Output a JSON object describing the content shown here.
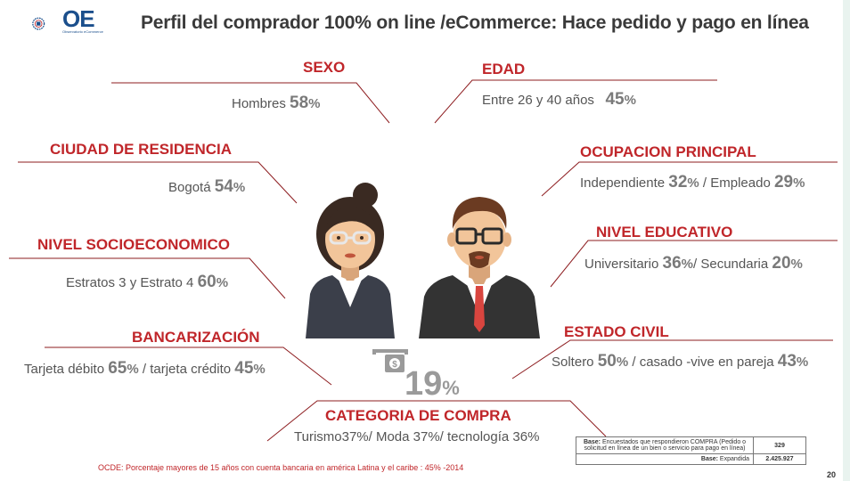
{
  "header": {
    "logo_text": "OE",
    "logo_subtitle": "Observatorio eCommerce",
    "title": "Perfil del comprador 100% on line /eCommerce: Hace pedido y pago en línea"
  },
  "sections": {
    "sexo": {
      "title": "SEXO",
      "label": "Hombres ",
      "value": "58",
      "unit": "%"
    },
    "edad": {
      "title": "EDAD",
      "label": "Entre 26 y 40 años ",
      "value": "45",
      "unit": "%"
    },
    "ciudad": {
      "title": "CIUDAD DE RESIDENCIA",
      "label": "Bogotá ",
      "value": "54",
      "unit": "%"
    },
    "ocupacion": {
      "title": "OCUPACION PRINCIPAL",
      "label1": "Independiente ",
      "value1": "32",
      "unit1": "%",
      "label2": " / Empleado ",
      "value2": "29",
      "unit2": "%"
    },
    "nivel_socio": {
      "title": "NIVEL SOCIOECONOMICO",
      "label": "Estratos 3 y Estrato 4 ",
      "value": "60",
      "unit": "%"
    },
    "nivel_edu": {
      "title": "NIVEL EDUCATIVO",
      "label1": "Universitario ",
      "value1": "36",
      "unit1": "%",
      "label2": "/ Secundaria ",
      "value2": "20",
      "unit2": "%"
    },
    "bancarizacion": {
      "title": "BANCARIZACIÓN",
      "label1": "Tarjeta débito ",
      "value1": "65",
      "unit1": "%",
      "label2": " / tarjeta crédito ",
      "value2": "45",
      "unit2": "%"
    },
    "estado_civil": {
      "title": "ESTADO CIVIL",
      "label1": "Soltero ",
      "value1": "50",
      "unit1": "%",
      "label2": " / casado -vive en pareja ",
      "value2": "43",
      "unit2": "%"
    },
    "categoria": {
      "title": "CATEGORIA DE COMPRA",
      "label": "Turismo37%/ Moda 37%/ tecnología 36%"
    }
  },
  "center_stat": {
    "value": "19",
    "unit": "%",
    "icon": "money-card-icon"
  },
  "footnote": "OCDE: Porcentaje mayores de 15 años con cuenta bancaria en américa Latina y el caribe : 45% -2014",
  "base_table": {
    "row1_label_bold": "Base:",
    "row1_label": " Encuestados que respondieron COMPRA (Pedido o solicitud en línea de un bien o servicio para pago en línea)",
    "row1_value": "329",
    "row2_label_bold": "Base:",
    "row2_label": " Expandida",
    "row2_value": "2.425.927"
  },
  "page_number": "20",
  "colors": {
    "accent_red": "#c0262a",
    "line": "#8d1c1f",
    "text_gray": "#555555"
  }
}
